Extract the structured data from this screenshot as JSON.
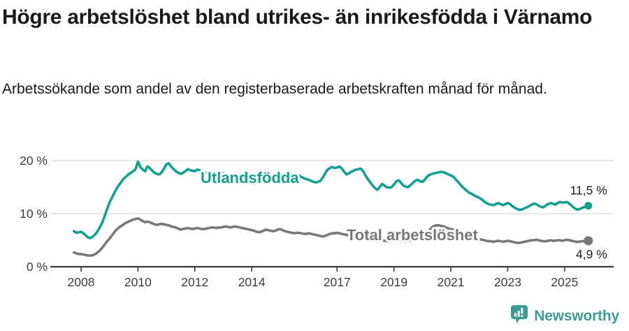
{
  "page": {
    "title": "Högre arbetslöshet bland utrikes- än inrikesfödda i Värnamo",
    "subtitle": "Arbetssökande som andel av den registerbaserade arbetskraften månad för månad."
  },
  "footer": {
    "brand": "Newsworthy",
    "brand_color": "#3d9c93",
    "logo_icon": "speech-bubble-bar-chart-icon"
  },
  "chart_data": {
    "type": "line",
    "title": "Högre arbetslöshet bland utrikes- än inrikesfödda i Värnamo",
    "subtitle": "Arbetssökande som andel av den registerbaserade arbetskraften månad för månad.",
    "unit": "%",
    "frequency": "monthly",
    "x_start": "2007-10",
    "x_end": "2025-11",
    "grid": "horizontal",
    "legend_position": "inline-on-line",
    "ylim": [
      0,
      21
    ],
    "yticks": [
      {
        "value": 0,
        "label": "0 %"
      },
      {
        "value": 10,
        "label": "10 %"
      },
      {
        "value": 20,
        "label": "20 %"
      }
    ],
    "xticks": [
      {
        "year": 2008,
        "label": "2008"
      },
      {
        "year": 2010,
        "label": "2010"
      },
      {
        "year": 2012,
        "label": "2012"
      },
      {
        "year": 2014,
        "label": "2014"
      },
      {
        "year": 2017,
        "label": "2017"
      },
      {
        "year": 2019,
        "label": "2019"
      },
      {
        "year": 2021,
        "label": "2021"
      },
      {
        "year": 2023,
        "label": "2023"
      },
      {
        "year": 2025,
        "label": "2025"
      }
    ],
    "series": [
      {
        "name": "Utlandsfödda",
        "slug": "utlandsfodda",
        "color": "#11a092",
        "end_value": 11.5,
        "end_label": "11,5 %",
        "values": [
          6.7,
          6.4,
          6.5,
          6.6,
          6.3,
          5.9,
          5.5,
          5.4,
          5.7,
          6.1,
          6.7,
          7.5,
          8.4,
          9.6,
          10.9,
          12.1,
          13.0,
          13.9,
          14.7,
          15.4,
          16.0,
          16.6,
          17.0,
          17.4,
          17.7,
          18.0,
          18.4,
          19.8,
          18.8,
          18.3,
          18.0,
          18.9,
          18.6,
          18.1,
          17.7,
          17.5,
          17.4,
          17.8,
          18.5,
          19.3,
          19.5,
          18.9,
          18.4,
          18.0,
          17.7,
          17.5,
          17.7,
          18.0,
          18.4,
          18.2,
          18.1,
          18.0,
          18.3,
          18.2,
          17.9,
          17.8,
          17.7,
          17.6,
          17.5,
          17.5,
          17.6,
          17.5,
          17.4,
          17.6,
          17.5,
          17.4,
          17.3,
          17.2,
          17.0,
          16.8,
          16.6,
          16.4,
          16.2,
          16.0,
          15.8,
          15.7,
          15.6,
          15.8,
          16.0,
          16.2,
          16.4,
          16.5,
          16.6,
          16.6,
          16.7,
          16.8,
          16.9,
          17.0,
          17.1,
          17.2,
          17.3,
          17.4,
          17.5,
          17.5,
          17.4,
          17.2,
          16.9,
          16.7,
          16.5,
          16.4,
          16.2,
          16.0,
          15.9,
          16.0,
          16.2,
          16.8,
          17.6,
          18.3,
          18.6,
          18.8,
          18.6,
          18.7,
          18.9,
          18.5,
          17.9,
          17.4,
          17.6,
          17.9,
          18.1,
          18.3,
          18.4,
          18.5,
          18.0,
          17.2,
          16.5,
          15.9,
          15.3,
          14.8,
          14.5,
          15.0,
          15.6,
          15.3,
          15.0,
          14.9,
          15.0,
          15.5,
          16.1,
          16.3,
          15.8,
          15.3,
          15.1,
          15.0,
          15.4,
          15.8,
          16.2,
          16.4,
          16.1,
          16.0,
          16.4,
          17.0,
          17.3,
          17.5,
          17.6,
          17.7,
          17.8,
          17.9,
          17.8,
          17.6,
          17.4,
          17.2,
          17.0,
          16.5,
          16.0,
          15.5,
          15.0,
          14.6,
          14.2,
          13.9,
          13.7,
          13.4,
          13.2,
          13.0,
          12.7,
          12.3,
          12.0,
          11.8,
          11.7,
          11.6,
          11.8,
          12.0,
          11.8,
          11.6,
          11.8,
          12.0,
          11.8,
          11.4,
          11.1,
          10.9,
          10.7,
          10.8,
          11.0,
          11.2,
          11.4,
          11.7,
          11.9,
          11.8,
          11.5,
          11.3,
          11.2,
          11.5,
          11.8,
          12.0,
          11.9,
          11.7,
          12.0,
          12.2,
          12.1,
          12.1,
          12.2,
          11.9,
          11.5,
          11.1,
          10.8,
          10.8,
          11.0,
          11.2,
          11.3,
          11.5
        ]
      },
      {
        "name": "Total arbetslöshet",
        "slug": "total-arbetsloshet",
        "color": "#787878",
        "end_value": 4.9,
        "end_label": "4,9 %",
        "values": [
          2.7,
          2.5,
          2.4,
          2.4,
          2.3,
          2.2,
          2.1,
          2.1,
          2.2,
          2.4,
          2.7,
          3.1,
          3.6,
          4.2,
          4.8,
          5.3,
          5.9,
          6.5,
          7.0,
          7.4,
          7.7,
          8.0,
          8.3,
          8.5,
          8.7,
          8.9,
          9.0,
          9.1,
          8.9,
          8.6,
          8.4,
          8.5,
          8.4,
          8.2,
          8.0,
          7.9,
          8.0,
          8.1,
          8.0,
          7.9,
          7.8,
          7.6,
          7.5,
          7.4,
          7.2,
          7.0,
          7.1,
          7.2,
          7.3,
          7.2,
          7.1,
          7.2,
          7.3,
          7.2,
          7.1,
          7.1,
          7.2,
          7.3,
          7.4,
          7.4,
          7.3,
          7.4,
          7.4,
          7.5,
          7.6,
          7.5,
          7.4,
          7.5,
          7.6,
          7.5,
          7.4,
          7.3,
          7.2,
          7.1,
          7.0,
          6.9,
          6.8,
          6.6,
          6.5,
          6.6,
          6.8,
          7.0,
          6.9,
          6.8,
          6.7,
          6.8,
          7.0,
          7.1,
          6.9,
          6.7,
          6.6,
          6.5,
          6.4,
          6.3,
          6.4,
          6.4,
          6.3,
          6.2,
          6.2,
          6.3,
          6.2,
          6.1,
          6.0,
          5.9,
          5.8,
          5.7,
          5.8,
          6.0,
          6.2,
          6.3,
          6.3,
          6.4,
          6.3,
          6.2,
          6.1,
          6.0,
          5.9,
          5.8,
          5.7,
          5.6,
          5.5,
          5.5,
          5.4,
          5.4,
          5.3,
          5.1,
          5.0,
          4.9,
          4.8,
          4.9,
          5.0,
          4.9,
          4.8,
          4.8,
          4.9,
          5.0,
          5.1,
          5.0,
          4.9,
          4.8,
          4.8,
          4.9,
          5.0,
          5.0,
          5.1,
          5.1,
          5.2,
          5.4,
          5.6,
          6.2,
          6.9,
          7.4,
          7.7,
          7.8,
          7.8,
          7.7,
          7.6,
          7.4,
          7.2,
          7.1,
          7.0,
          6.8,
          6.5,
          6.3,
          6.1,
          5.9,
          5.8,
          5.6,
          5.5,
          5.4,
          5.3,
          5.2,
          5.1,
          5.0,
          4.9,
          4.8,
          4.8,
          4.7,
          4.8,
          4.9,
          4.8,
          4.7,
          4.8,
          4.9,
          4.8,
          4.7,
          4.6,
          4.5,
          4.5,
          4.6,
          4.7,
          4.8,
          4.9,
          5.0,
          5.0,
          5.1,
          5.0,
          4.9,
          4.8,
          4.8,
          4.9,
          5.0,
          4.9,
          4.9,
          5.0,
          5.0,
          4.9,
          5.0,
          5.1,
          5.0,
          4.9,
          4.8,
          4.7,
          4.7,
          4.8,
          4.8,
          4.8,
          4.9
        ]
      }
    ]
  }
}
